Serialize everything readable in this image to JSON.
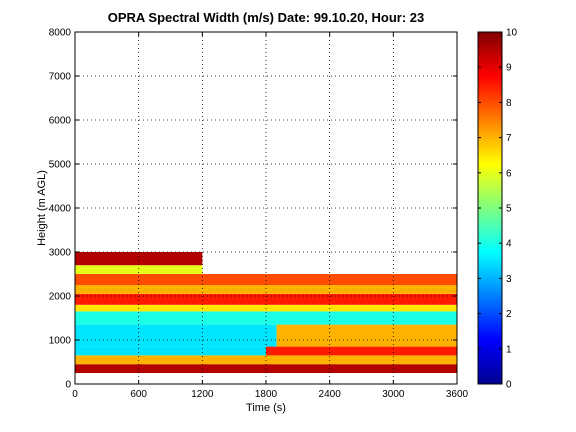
{
  "chart_data": {
    "type": "heatmap",
    "title": "OPRA Spectral Width (m/s)  Date: 99.10.20, Hour: 23",
    "xlabel": "Time (s)",
    "ylabel": "Height (m AGL)",
    "xlim": [
      0,
      3600
    ],
    "ylim": [
      0,
      8000
    ],
    "xticks": [
      "0",
      "600",
      "1200",
      "1800",
      "2400",
      "3000",
      "3600"
    ],
    "yticks": [
      "0",
      "1000",
      "2000",
      "3000",
      "4000",
      "5000",
      "6000",
      "7000",
      "8000"
    ],
    "grid": true,
    "colormap": "jet",
    "colorbar": {
      "range": [
        0,
        10
      ],
      "ticks": [
        "0",
        "1",
        "2",
        "3",
        "4",
        "5",
        "6",
        "7",
        "8",
        "9",
        "10"
      ]
    },
    "layers": [
      {
        "height_range": [
          250,
          450
        ],
        "time_range": [
          0,
          3600
        ],
        "value": 9.5
      },
      {
        "height_range": [
          450,
          650
        ],
        "time_range": [
          0,
          3600
        ],
        "value": 7
      },
      {
        "height_range": [
          650,
          850
        ],
        "time_range": [
          0,
          1800
        ],
        "value": 3.5
      },
      {
        "height_range": [
          650,
          850
        ],
        "time_range": [
          1800,
          3600
        ],
        "value": 8.5
      },
      {
        "height_range": [
          850,
          1350
        ],
        "time_range": [
          0,
          1900
        ],
        "value": 3.5
      },
      {
        "height_range": [
          850,
          1350
        ],
        "time_range": [
          1900,
          3600
        ],
        "value": 7
      },
      {
        "height_range": [
          1350,
          1650
        ],
        "time_range": [
          0,
          3600
        ],
        "value": 4
      },
      {
        "height_range": [
          1650,
          1800
        ],
        "time_range": [
          0,
          3600
        ],
        "value": 6.5
      },
      {
        "height_range": [
          1800,
          2050
        ],
        "time_range": [
          0,
          3600
        ],
        "value": 8.5
      },
      {
        "height_range": [
          2050,
          2250
        ],
        "time_range": [
          0,
          3600
        ],
        "value": 7
      },
      {
        "height_range": [
          2250,
          2500
        ],
        "time_range": [
          0,
          3600
        ],
        "value": 8
      },
      {
        "height_range": [
          2500,
          2700
        ],
        "time_range": [
          0,
          1200
        ],
        "value": 6
      },
      {
        "height_range": [
          2700,
          3000
        ],
        "time_range": [
          0,
          1200
        ],
        "value": 9.5
      }
    ]
  }
}
